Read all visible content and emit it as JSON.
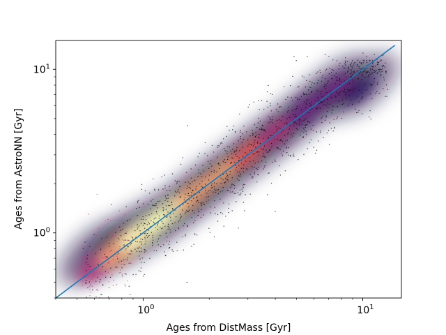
{
  "chart_data": {
    "type": "scatter",
    "title": "",
    "xlabel": "Ages from DistMass [Gyr]",
    "ylabel": "Ages from AstroNN [Gyr]",
    "xscale": "log",
    "yscale": "log",
    "xlim": [
      0.4,
      15
    ],
    "ylim": [
      0.4,
      15
    ],
    "xticks": [
      {
        "value": 1,
        "base": "10",
        "exp": "0"
      },
      {
        "value": 10,
        "base": "10",
        "exp": "1"
      }
    ],
    "yticks": [
      {
        "value": 1,
        "base": "10",
        "exp": "0"
      },
      {
        "value": 10,
        "base": "10",
        "exp": "1"
      }
    ],
    "grid": false,
    "colormap": "magma",
    "density_description": "point density coloring; densest near x≈1, y≈1",
    "density_ridge": [
      {
        "x": 0.6,
        "y": 0.75
      },
      {
        "x": 0.8,
        "y": 0.9
      },
      {
        "x": 1.0,
        "y": 1.05
      },
      {
        "x": 1.3,
        "y": 1.3
      },
      {
        "x": 1.7,
        "y": 1.7
      },
      {
        "x": 2.2,
        "y": 2.2
      },
      {
        "x": 3.0,
        "y": 3.0
      },
      {
        "x": 4.0,
        "y": 4.0
      },
      {
        "x": 5.5,
        "y": 5.6
      },
      {
        "x": 7.5,
        "y": 7.8
      },
      {
        "x": 10.0,
        "y": 8.0
      }
    ],
    "reference_line": {
      "x": [
        0.4,
        14
      ],
      "y": [
        0.4,
        14
      ],
      "color": "#1f77b4"
    },
    "colors": {
      "line": "#1f77b4",
      "outlier_points": "#000000"
    }
  }
}
